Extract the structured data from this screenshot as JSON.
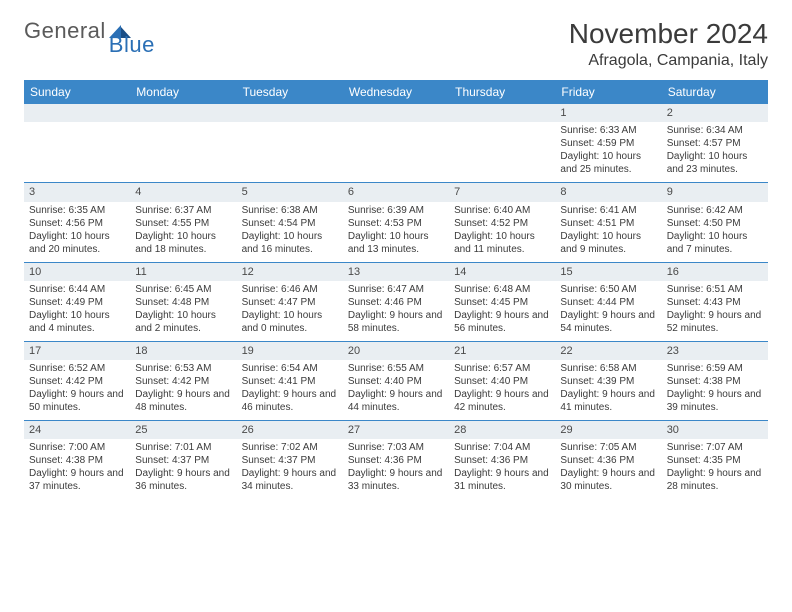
{
  "logo": {
    "general": "General",
    "blue": "Blue"
  },
  "title": "November 2024",
  "location": "Afragola, Campania, Italy",
  "colors": {
    "header_bg": "#3b87c8",
    "header_text": "#ffffff",
    "daynum_bg": "#e9eef2",
    "body_text": "#3b3b3b",
    "logo_gray": "#5a5a5a",
    "logo_blue": "#2a6fb5",
    "rule": "#3b87c8"
  },
  "day_names": [
    "Sunday",
    "Monday",
    "Tuesday",
    "Wednesday",
    "Thursday",
    "Friday",
    "Saturday"
  ],
  "weeks": [
    [
      {
        "num": "",
        "sunrise": "",
        "sunset": "",
        "daylight": ""
      },
      {
        "num": "",
        "sunrise": "",
        "sunset": "",
        "daylight": ""
      },
      {
        "num": "",
        "sunrise": "",
        "sunset": "",
        "daylight": ""
      },
      {
        "num": "",
        "sunrise": "",
        "sunset": "",
        "daylight": ""
      },
      {
        "num": "",
        "sunrise": "",
        "sunset": "",
        "daylight": ""
      },
      {
        "num": "1",
        "sunrise": "Sunrise: 6:33 AM",
        "sunset": "Sunset: 4:59 PM",
        "daylight": "Daylight: 10 hours and 25 minutes."
      },
      {
        "num": "2",
        "sunrise": "Sunrise: 6:34 AM",
        "sunset": "Sunset: 4:57 PM",
        "daylight": "Daylight: 10 hours and 23 minutes."
      }
    ],
    [
      {
        "num": "3",
        "sunrise": "Sunrise: 6:35 AM",
        "sunset": "Sunset: 4:56 PM",
        "daylight": "Daylight: 10 hours and 20 minutes."
      },
      {
        "num": "4",
        "sunrise": "Sunrise: 6:37 AM",
        "sunset": "Sunset: 4:55 PM",
        "daylight": "Daylight: 10 hours and 18 minutes."
      },
      {
        "num": "5",
        "sunrise": "Sunrise: 6:38 AM",
        "sunset": "Sunset: 4:54 PM",
        "daylight": "Daylight: 10 hours and 16 minutes."
      },
      {
        "num": "6",
        "sunrise": "Sunrise: 6:39 AM",
        "sunset": "Sunset: 4:53 PM",
        "daylight": "Daylight: 10 hours and 13 minutes."
      },
      {
        "num": "7",
        "sunrise": "Sunrise: 6:40 AM",
        "sunset": "Sunset: 4:52 PM",
        "daylight": "Daylight: 10 hours and 11 minutes."
      },
      {
        "num": "8",
        "sunrise": "Sunrise: 6:41 AM",
        "sunset": "Sunset: 4:51 PM",
        "daylight": "Daylight: 10 hours and 9 minutes."
      },
      {
        "num": "9",
        "sunrise": "Sunrise: 6:42 AM",
        "sunset": "Sunset: 4:50 PM",
        "daylight": "Daylight: 10 hours and 7 minutes."
      }
    ],
    [
      {
        "num": "10",
        "sunrise": "Sunrise: 6:44 AM",
        "sunset": "Sunset: 4:49 PM",
        "daylight": "Daylight: 10 hours and 4 minutes."
      },
      {
        "num": "11",
        "sunrise": "Sunrise: 6:45 AM",
        "sunset": "Sunset: 4:48 PM",
        "daylight": "Daylight: 10 hours and 2 minutes."
      },
      {
        "num": "12",
        "sunrise": "Sunrise: 6:46 AM",
        "sunset": "Sunset: 4:47 PM",
        "daylight": "Daylight: 10 hours and 0 minutes."
      },
      {
        "num": "13",
        "sunrise": "Sunrise: 6:47 AM",
        "sunset": "Sunset: 4:46 PM",
        "daylight": "Daylight: 9 hours and 58 minutes."
      },
      {
        "num": "14",
        "sunrise": "Sunrise: 6:48 AM",
        "sunset": "Sunset: 4:45 PM",
        "daylight": "Daylight: 9 hours and 56 minutes."
      },
      {
        "num": "15",
        "sunrise": "Sunrise: 6:50 AM",
        "sunset": "Sunset: 4:44 PM",
        "daylight": "Daylight: 9 hours and 54 minutes."
      },
      {
        "num": "16",
        "sunrise": "Sunrise: 6:51 AM",
        "sunset": "Sunset: 4:43 PM",
        "daylight": "Daylight: 9 hours and 52 minutes."
      }
    ],
    [
      {
        "num": "17",
        "sunrise": "Sunrise: 6:52 AM",
        "sunset": "Sunset: 4:42 PM",
        "daylight": "Daylight: 9 hours and 50 minutes."
      },
      {
        "num": "18",
        "sunrise": "Sunrise: 6:53 AM",
        "sunset": "Sunset: 4:42 PM",
        "daylight": "Daylight: 9 hours and 48 minutes."
      },
      {
        "num": "19",
        "sunrise": "Sunrise: 6:54 AM",
        "sunset": "Sunset: 4:41 PM",
        "daylight": "Daylight: 9 hours and 46 minutes."
      },
      {
        "num": "20",
        "sunrise": "Sunrise: 6:55 AM",
        "sunset": "Sunset: 4:40 PM",
        "daylight": "Daylight: 9 hours and 44 minutes."
      },
      {
        "num": "21",
        "sunrise": "Sunrise: 6:57 AM",
        "sunset": "Sunset: 4:40 PM",
        "daylight": "Daylight: 9 hours and 42 minutes."
      },
      {
        "num": "22",
        "sunrise": "Sunrise: 6:58 AM",
        "sunset": "Sunset: 4:39 PM",
        "daylight": "Daylight: 9 hours and 41 minutes."
      },
      {
        "num": "23",
        "sunrise": "Sunrise: 6:59 AM",
        "sunset": "Sunset: 4:38 PM",
        "daylight": "Daylight: 9 hours and 39 minutes."
      }
    ],
    [
      {
        "num": "24",
        "sunrise": "Sunrise: 7:00 AM",
        "sunset": "Sunset: 4:38 PM",
        "daylight": "Daylight: 9 hours and 37 minutes."
      },
      {
        "num": "25",
        "sunrise": "Sunrise: 7:01 AM",
        "sunset": "Sunset: 4:37 PM",
        "daylight": "Daylight: 9 hours and 36 minutes."
      },
      {
        "num": "26",
        "sunrise": "Sunrise: 7:02 AM",
        "sunset": "Sunset: 4:37 PM",
        "daylight": "Daylight: 9 hours and 34 minutes."
      },
      {
        "num": "27",
        "sunrise": "Sunrise: 7:03 AM",
        "sunset": "Sunset: 4:36 PM",
        "daylight": "Daylight: 9 hours and 33 minutes."
      },
      {
        "num": "28",
        "sunrise": "Sunrise: 7:04 AM",
        "sunset": "Sunset: 4:36 PM",
        "daylight": "Daylight: 9 hours and 31 minutes."
      },
      {
        "num": "29",
        "sunrise": "Sunrise: 7:05 AM",
        "sunset": "Sunset: 4:36 PM",
        "daylight": "Daylight: 9 hours and 30 minutes."
      },
      {
        "num": "30",
        "sunrise": "Sunrise: 7:07 AM",
        "sunset": "Sunset: 4:35 PM",
        "daylight": "Daylight: 9 hours and 28 minutes."
      }
    ]
  ]
}
